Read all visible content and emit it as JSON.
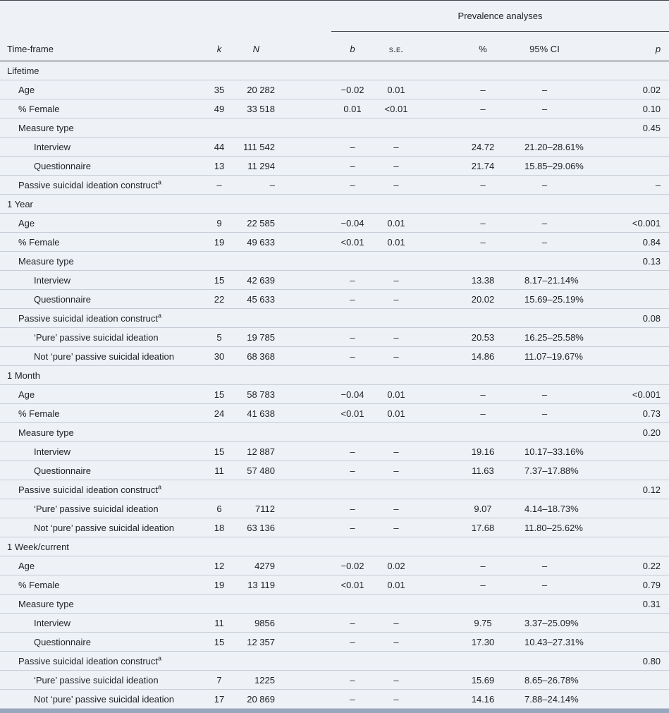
{
  "header": {
    "spanner": "Prevalence analyses",
    "columns": [
      "Time-frame",
      "k",
      "N",
      "b",
      "s.e.",
      "%",
      "95% CI",
      "p"
    ]
  },
  "rows": [
    {
      "label": "Lifetime",
      "indent": 0,
      "section": true,
      "k": "",
      "N": "",
      "b": "",
      "se": "",
      "pct": "",
      "ci": "",
      "p": ""
    },
    {
      "label": "Age",
      "indent": 1,
      "k": "35",
      "N": "20 282",
      "b": "−0.02",
      "se": "0.01",
      "pct": "–",
      "ci": "–",
      "p": "0.02"
    },
    {
      "label": "% Female",
      "indent": 1,
      "k": "49",
      "N": "33 518",
      "b": "0.01",
      "se": "<0.01",
      "pct": "–",
      "ci": "–",
      "p": "0.10"
    },
    {
      "label": "Measure type",
      "indent": 1,
      "k": "",
      "N": "",
      "b": "",
      "se": "",
      "pct": "",
      "ci": "",
      "p": "0.45"
    },
    {
      "label": "Interview",
      "indent": 2,
      "k": "44",
      "N": "111 542",
      "b": "–",
      "se": "–",
      "pct": "24.72",
      "ci": "21.20–28.61%",
      "p": ""
    },
    {
      "label": "Questionnaire",
      "indent": 2,
      "k": "13",
      "N": "11 294",
      "b": "–",
      "se": "–",
      "pct": "21.74",
      "ci": "15.85–29.06%",
      "p": ""
    },
    {
      "label": "Passive suicidal ideation construct",
      "sup": "a",
      "indent": 1,
      "k": "–",
      "N": "–",
      "b": "–",
      "se": "–",
      "pct": "–",
      "ci": "–",
      "p": "–"
    },
    {
      "label": "1 Year",
      "indent": 0,
      "section": true,
      "k": "",
      "N": "",
      "b": "",
      "se": "",
      "pct": "",
      "ci": "",
      "p": ""
    },
    {
      "label": "Age",
      "indent": 1,
      "k": "9",
      "N": "22 585",
      "b": "−0.04",
      "se": "0.01",
      "pct": "–",
      "ci": "–",
      "p": "<0.001"
    },
    {
      "label": "% Female",
      "indent": 1,
      "k": "19",
      "N": "49 633",
      "b": "<0.01",
      "se": "0.01",
      "pct": "–",
      "ci": "–",
      "p": "0.84"
    },
    {
      "label": "Measure type",
      "indent": 1,
      "k": "",
      "N": "",
      "b": "",
      "se": "",
      "pct": "",
      "ci": "",
      "p": "0.13"
    },
    {
      "label": "Interview",
      "indent": 2,
      "k": "15",
      "N": "42 639",
      "b": "–",
      "se": "–",
      "pct": "13.38",
      "ci": "8.17–21.14%",
      "p": ""
    },
    {
      "label": "Questionnaire",
      "indent": 2,
      "k": "22",
      "N": "45 633",
      "b": "–",
      "se": "–",
      "pct": "20.02",
      "ci": "15.69–25.19%",
      "p": ""
    },
    {
      "label": "Passive suicidal ideation construct",
      "sup": "a",
      "indent": 1,
      "k": "",
      "N": "",
      "b": "",
      "se": "",
      "pct": "",
      "ci": "",
      "p": "0.08"
    },
    {
      "label": "‘Pure’ passive suicidal ideation",
      "indent": 2,
      "k": "5",
      "N": "19 785",
      "b": "–",
      "se": "–",
      "pct": "20.53",
      "ci": "16.25–25.58%",
      "p": ""
    },
    {
      "label": "Not ‘pure’ passive suicidal ideation",
      "indent": 2,
      "k": "30",
      "N": "68 368",
      "b": "–",
      "se": "–",
      "pct": "14.86",
      "ci": "11.07–19.67%",
      "p": ""
    },
    {
      "label": "1 Month",
      "indent": 0,
      "section": true,
      "k": "",
      "N": "",
      "b": "",
      "se": "",
      "pct": "",
      "ci": "",
      "p": ""
    },
    {
      "label": "Age",
      "indent": 1,
      "k": "15",
      "N": "58 783",
      "b": "−0.04",
      "se": "0.01",
      "pct": "–",
      "ci": "–",
      "p": "<0.001"
    },
    {
      "label": "% Female",
      "indent": 1,
      "k": "24",
      "N": "41 638",
      "b": "<0.01",
      "se": "0.01",
      "pct": "–",
      "ci": "–",
      "p": "0.73"
    },
    {
      "label": "Measure type",
      "indent": 1,
      "k": "",
      "N": "",
      "b": "",
      "se": "",
      "pct": "",
      "ci": "",
      "p": "0.20"
    },
    {
      "label": "Interview",
      "indent": 2,
      "k": "15",
      "N": "12 887",
      "b": "–",
      "se": "–",
      "pct": "19.16",
      "ci": "10.17–33.16%",
      "p": ""
    },
    {
      "label": "Questionnaire",
      "indent": 2,
      "k": "11",
      "N": "57 480",
      "b": "–",
      "se": "–",
      "pct": "11.63",
      "ci": "7.37–17.88%",
      "p": ""
    },
    {
      "label": "Passive suicidal ideation construct",
      "sup": "a",
      "indent": 1,
      "k": "",
      "N": "",
      "b": "",
      "se": "",
      "pct": "",
      "ci": "",
      "p": "0.12"
    },
    {
      "label": "‘Pure’ passive suicidal ideation",
      "indent": 2,
      "k": "6",
      "N": "7112",
      "b": "–",
      "se": "–",
      "pct": "9.07",
      "ci": "4.14–18.73%",
      "p": ""
    },
    {
      "label": "Not ‘pure’ passive suicidal ideation",
      "indent": 2,
      "k": "18",
      "N": "63 136",
      "b": "–",
      "se": "–",
      "pct": "17.68",
      "ci": "11.80–25.62%",
      "p": ""
    },
    {
      "label": "1 Week/current",
      "indent": 0,
      "section": true,
      "k": "",
      "N": "",
      "b": "",
      "se": "",
      "pct": "",
      "ci": "",
      "p": ""
    },
    {
      "label": "Age",
      "indent": 1,
      "k": "12",
      "N": "4279",
      "b": "−0.02",
      "se": "0.02",
      "pct": "–",
      "ci": "–",
      "p": "0.22"
    },
    {
      "label": "% Female",
      "indent": 1,
      "k": "19",
      "N": "13 119",
      "b": "<0.01",
      "se": "0.01",
      "pct": "–",
      "ci": "–",
      "p": "0.79"
    },
    {
      "label": "Measure type",
      "indent": 1,
      "k": "",
      "N": "",
      "b": "",
      "se": "",
      "pct": "",
      "ci": "",
      "p": "0.31"
    },
    {
      "label": "Interview",
      "indent": 2,
      "k": "11",
      "N": "9856",
      "b": "–",
      "se": "–",
      "pct": "9.75",
      "ci": "3.37–25.09%",
      "p": ""
    },
    {
      "label": "Questionnaire",
      "indent": 2,
      "k": "15",
      "N": "12 357",
      "b": "–",
      "se": "–",
      "pct": "17.30",
      "ci": "10.43–27.31%",
      "p": ""
    },
    {
      "label": "Passive suicidal ideation construct",
      "sup": "a",
      "indent": 1,
      "k": "",
      "N": "",
      "b": "",
      "se": "",
      "pct": "",
      "ci": "",
      "p": "0.80"
    },
    {
      "label": "‘Pure’ passive suicidal ideation",
      "indent": 2,
      "k": "7",
      "N": "1225",
      "b": "–",
      "se": "–",
      "pct": "15.69",
      "ci": "8.65–26.78%",
      "p": ""
    },
    {
      "label": "Not ‘pure’ passive suicidal ideation",
      "indent": 2,
      "k": "17",
      "N": "20 869",
      "b": "–",
      "se": "–",
      "pct": "14.16",
      "ci": "7.88–24.14%",
      "p": ""
    }
  ]
}
